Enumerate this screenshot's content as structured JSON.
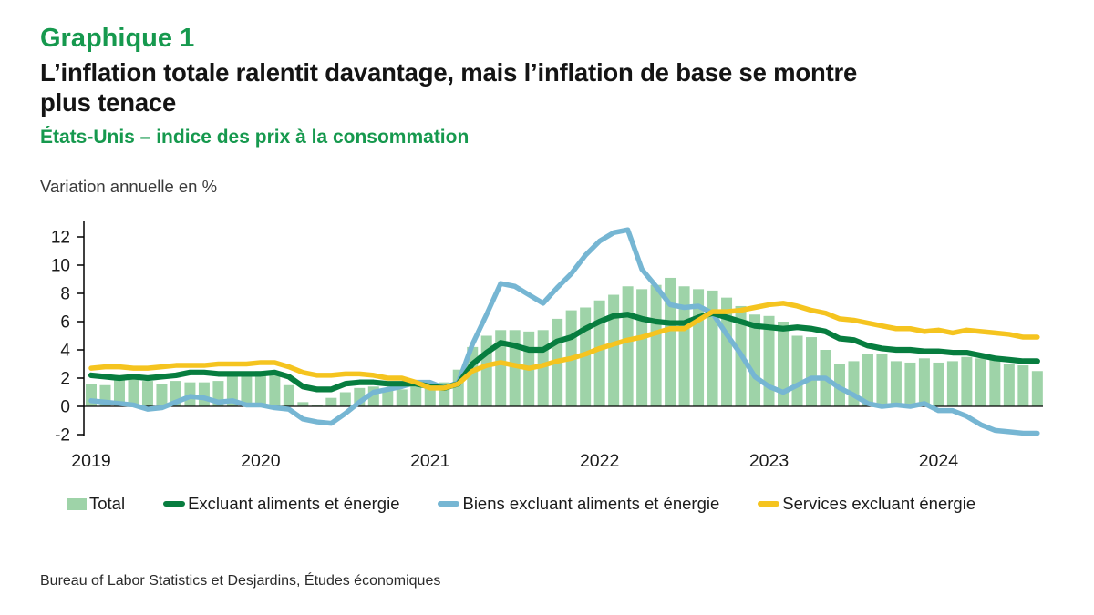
{
  "header": {
    "label": "Graphique 1",
    "title_lines": [
      "L’inflation totale ralentit davantage, mais l’inflation de base se montre",
      "plus tenace"
    ],
    "subtitle": "États-Unis – indice des prix à la consommation",
    "units": "Variation annuelle en %"
  },
  "source": "Bureau of Labor Statistics et Desjardins, Études économiques",
  "colors": {
    "heading_green": "#16994e",
    "bar_green": "#9ed3a8",
    "core_green": "#077d3f",
    "goods_blue": "#76b6d3",
    "services_yellow": "#f5c41f",
    "axis_black": "#000000"
  },
  "chart_data": {
    "type": "bar",
    "x_start": "2019-01",
    "x_end": "2024-08",
    "x_frequency": "monthly",
    "year_labels": [
      "2019",
      "2020",
      "2021",
      "2022",
      "2023",
      "2024"
    ],
    "y_ticks": [
      -2,
      0,
      2,
      4,
      6,
      8,
      10,
      12
    ],
    "ylim": [
      -2,
      12.6
    ],
    "grid": false,
    "legend_position": "bottom",
    "series": [
      {
        "key": "total",
        "name": "Total",
        "type": "bar",
        "color": "#9ed3a8",
        "values": [
          1.6,
          1.5,
          1.9,
          2.0,
          1.8,
          1.6,
          1.8,
          1.7,
          1.7,
          1.8,
          2.1,
          2.3,
          2.5,
          2.3,
          1.5,
          0.3,
          0.1,
          0.6,
          1.0,
          1.3,
          1.4,
          1.2,
          1.2,
          1.4,
          1.4,
          1.7,
          2.6,
          4.2,
          5.0,
          5.4,
          5.4,
          5.3,
          5.4,
          6.2,
          6.8,
          7.0,
          7.5,
          7.9,
          8.5,
          8.3,
          8.6,
          9.1,
          8.5,
          8.3,
          8.2,
          7.7,
          7.1,
          6.5,
          6.4,
          6.0,
          5.0,
          4.9,
          4.0,
          3.0,
          3.2,
          3.7,
          3.7,
          3.2,
          3.1,
          3.4,
          3.1,
          3.2,
          3.5,
          3.4,
          3.3,
          3.0,
          2.9,
          2.5
        ]
      },
      {
        "key": "core",
        "name": "Excluant aliments et énergie",
        "type": "line",
        "color": "#077d3f",
        "values": [
          2.2,
          2.1,
          2.0,
          2.1,
          2.0,
          2.1,
          2.2,
          2.4,
          2.4,
          2.3,
          2.3,
          2.3,
          2.3,
          2.4,
          2.1,
          1.4,
          1.2,
          1.2,
          1.6,
          1.7,
          1.7,
          1.6,
          1.6,
          1.6,
          1.4,
          1.3,
          1.6,
          3.0,
          3.8,
          4.5,
          4.3,
          4.0,
          4.0,
          4.6,
          4.9,
          5.5,
          6.0,
          6.4,
          6.5,
          6.2,
          6.0,
          5.9,
          5.9,
          6.3,
          6.6,
          6.3,
          6.0,
          5.7,
          5.6,
          5.5,
          5.6,
          5.5,
          5.3,
          4.8,
          4.7,
          4.3,
          4.1,
          4.0,
          4.0,
          3.9,
          3.9,
          3.8,
          3.8,
          3.6,
          3.4,
          3.3,
          3.2,
          3.2
        ]
      },
      {
        "key": "goods",
        "name": "Biens excluant aliments et énergie",
        "type": "line",
        "color": "#76b6d3",
        "values": [
          0.4,
          0.3,
          0.2,
          0.1,
          -0.2,
          -0.1,
          0.3,
          0.7,
          0.6,
          0.3,
          0.4,
          0.1,
          0.1,
          -0.1,
          -0.2,
          -0.9,
          -1.1,
          -1.2,
          -0.5,
          0.3,
          1.0,
          1.2,
          1.4,
          1.7,
          1.7,
          1.3,
          1.7,
          4.4,
          6.5,
          8.7,
          8.5,
          7.9,
          7.3,
          8.4,
          9.4,
          10.7,
          11.7,
          12.3,
          12.5,
          9.7,
          8.5,
          7.2,
          7.0,
          7.1,
          6.6,
          5.1,
          3.7,
          2.1,
          1.4,
          1.0,
          1.5,
          2.0,
          2.0,
          1.3,
          0.8,
          0.2,
          0.0,
          0.1,
          0.0,
          0.2,
          -0.3,
          -0.3,
          -0.7,
          -1.3,
          -1.7,
          -1.8,
          -1.9,
          -1.9
        ]
      },
      {
        "key": "services",
        "name": "Services excluant énergie",
        "type": "line",
        "color": "#f5c41f",
        "values": [
          2.7,
          2.8,
          2.8,
          2.7,
          2.7,
          2.8,
          2.9,
          2.9,
          2.9,
          3.0,
          3.0,
          3.0,
          3.1,
          3.1,
          2.8,
          2.4,
          2.2,
          2.2,
          2.3,
          2.3,
          2.2,
          2.0,
          2.0,
          1.7,
          1.3,
          1.3,
          1.6,
          2.5,
          2.9,
          3.1,
          2.9,
          2.7,
          2.9,
          3.2,
          3.4,
          3.7,
          4.1,
          4.4,
          4.7,
          4.9,
          5.2,
          5.5,
          5.5,
          6.1,
          6.7,
          6.7,
          6.8,
          7.0,
          7.2,
          7.3,
          7.1,
          6.8,
          6.6,
          6.2,
          6.1,
          5.9,
          5.7,
          5.5,
          5.5,
          5.3,
          5.4,
          5.2,
          5.4,
          5.3,
          5.2,
          5.1,
          4.9,
          4.9
        ]
      }
    ]
  }
}
